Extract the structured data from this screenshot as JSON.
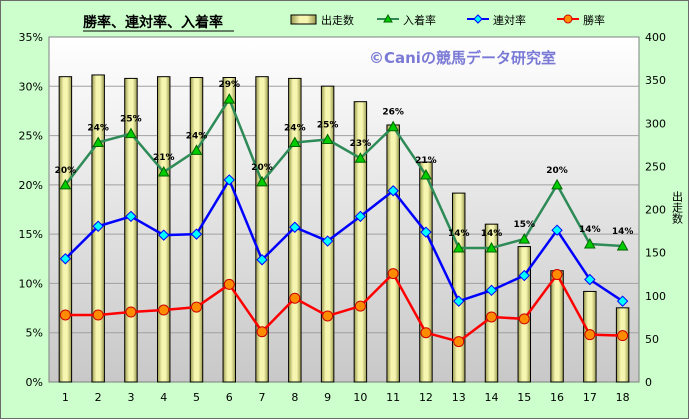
{
  "chart_data": {
    "type": "bar+line",
    "title": "勝率、連対率、入着率",
    "watermark": "©Caniの競馬データ研究室",
    "categories": [
      "1",
      "2",
      "3",
      "4",
      "5",
      "6",
      "7",
      "8",
      "9",
      "10",
      "11",
      "12",
      "13",
      "14",
      "15",
      "16",
      "17",
      "18"
    ],
    "bar_series": {
      "name": "出走数",
      "axis": "right",
      "values": [
        354,
        356,
        352,
        354,
        353,
        353,
        354,
        352,
        343,
        325,
        298,
        255,
        219,
        183,
        157,
        129,
        105,
        86
      ]
    },
    "line_series": [
      {
        "name": "入着率",
        "color": "#2e8b57",
        "marker": "triangle",
        "values": [
          20.0,
          24.3,
          25.2,
          21.3,
          23.5,
          28.7,
          20.3,
          24.3,
          24.6,
          22.7,
          25.9,
          21.0,
          13.6,
          13.6,
          14.5,
          20.0,
          14.0,
          13.8
        ],
        "data_labels": [
          "20%",
          "24%",
          "25%",
          "21%",
          "24%",
          "29%",
          "20%",
          "24%",
          "25%",
          "23%",
          "26%",
          "21%",
          "14%",
          "14%",
          "15%",
          "20%",
          "14%",
          "14%"
        ]
      },
      {
        "name": "連対率",
        "color": "#0000ff",
        "marker": "diamond",
        "values": [
          12.5,
          15.8,
          16.8,
          14.9,
          15.0,
          20.5,
          12.4,
          15.7,
          14.3,
          16.8,
          19.4,
          15.2,
          8.2,
          9.3,
          10.8,
          15.4,
          10.4,
          8.2
        ]
      },
      {
        "name": "勝率",
        "color": "#ff0000",
        "marker": "circle",
        "values": [
          6.8,
          6.8,
          7.1,
          7.3,
          7.6,
          9.9,
          5.1,
          8.5,
          6.7,
          7.7,
          11.0,
          5.0,
          4.1,
          6.6,
          6.4,
          10.9,
          4.8,
          4.7
        ]
      }
    ],
    "y_left": {
      "min": 0,
      "max": 35,
      "step": 5,
      "ticks": [
        "0%",
        "5%",
        "10%",
        "15%",
        "20%",
        "25%",
        "30%",
        "35%"
      ]
    },
    "y_right": {
      "label": "出走数",
      "min": 0,
      "max": 400,
      "step": 50,
      "ticks": [
        "0",
        "50",
        "100",
        "150",
        "200",
        "250",
        "300",
        "350",
        "400"
      ]
    },
    "grid": true,
    "legend_position": "top-right",
    "colors": {
      "background": "#ccffcc",
      "plot_background_top": "#ffffff",
      "plot_background_bottom": "#c8c8c8",
      "bar_fill": "#f0f0a8",
      "bar_stroke": "#000000"
    }
  }
}
